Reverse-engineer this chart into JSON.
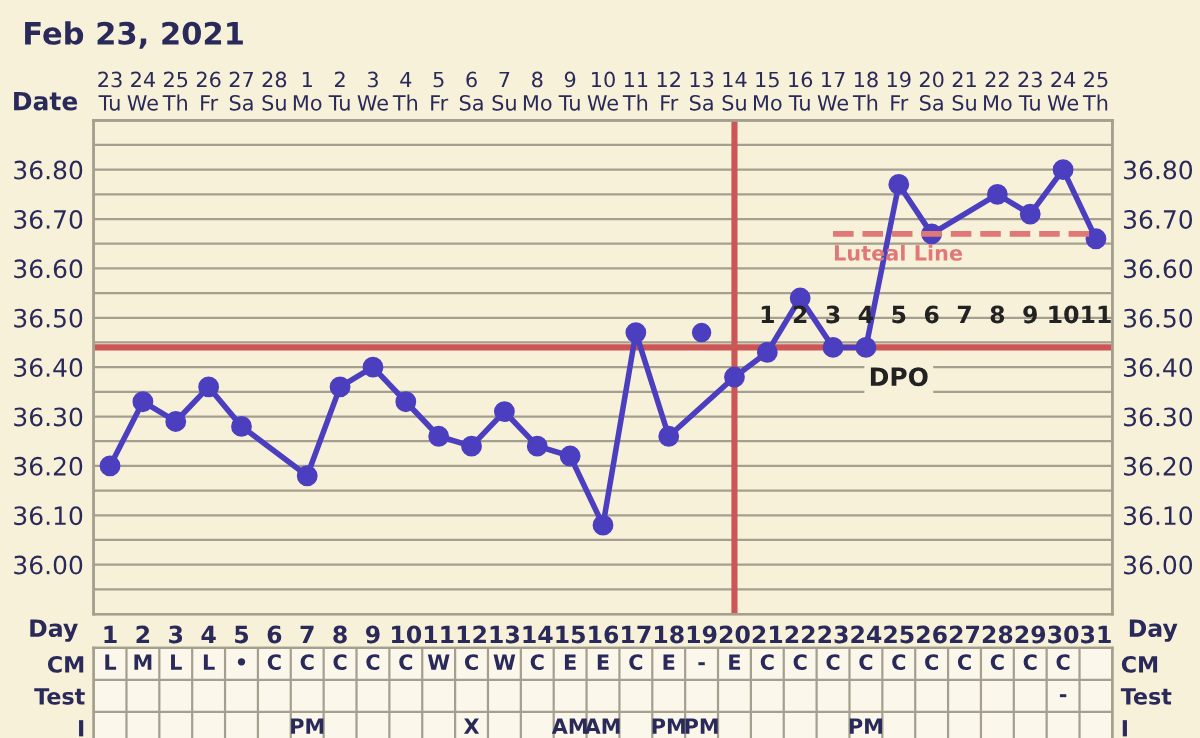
{
  "chart_data": [
    {
      "type": "line",
      "title": "Feb 23, 2021",
      "xlabel": "Day",
      "x2label": "Date",
      "x": [
        1,
        2,
        3,
        4,
        5,
        6,
        7,
        8,
        9,
        10,
        11,
        12,
        13,
        14,
        15,
        16,
        17,
        18,
        19,
        20,
        21,
        22,
        23,
        24,
        25,
        26,
        27,
        28,
        29,
        30,
        31
      ],
      "series": [
        {
          "color": "#4b3fc0",
          "values": [
            36.2,
            36.33,
            36.29,
            36.36,
            36.28,
            null,
            36.18,
            36.36,
            36.4,
            36.33,
            36.26,
            36.24,
            36.31,
            36.24,
            36.22,
            36.08,
            36.47,
            36.26,
            null,
            36.38,
            36.43,
            36.54,
            36.44,
            36.44,
            36.77,
            36.67,
            null,
            36.75,
            36.71,
            36.8,
            36.66
          ]
        },
        {
          "type": "scatter",
          "x": [
            19
          ],
          "values": [
            36.47
          ],
          "color": "#4b3fc0"
        },
        {
          "name": "Luteal Line",
          "type": "line",
          "x": [
            23,
            31
          ],
          "values": [
            36.67,
            36.67
          ],
          "color": "#e07878",
          "line_style": "dashed",
          "marker": "none"
        }
      ],
      "marker": "circle",
      "line_style": "solid",
      "grid": true,
      "xlim": [
        0.5,
        31.5
      ],
      "xticks": [
        1,
        2,
        3,
        4,
        5,
        6,
        7,
        8,
        9,
        10,
        11,
        12,
        13,
        14,
        15,
        16,
        17,
        18,
        19,
        20,
        21,
        22,
        23,
        24,
        25,
        26,
        27,
        28,
        29,
        30,
        31
      ],
      "x2lim": [
        "2021-02-22T12:00",
        "2021-03-25T12:00"
      ],
      "x2ticks": [
        {
          "value": "2021-02-23",
          "label": "23\nTu"
        },
        {
          "value": "2021-02-24",
          "label": "24\nWe"
        },
        {
          "value": "2021-02-25",
          "label": "25\nTh"
        },
        {
          "value": "2021-02-26",
          "label": "26\nFr"
        },
        {
          "value": "2021-02-27",
          "label": "27\nSa"
        },
        {
          "value": "2021-02-28",
          "label": "28\nSu"
        },
        {
          "value": "2021-03-01",
          "label": "1\nMo"
        },
        {
          "value": "2021-03-02",
          "label": "2\nTu"
        },
        {
          "value": "2021-03-03",
          "label": "3\nWe"
        },
        {
          "value": "2021-03-04",
          "label": "4\nTh"
        },
        {
          "value": "2021-03-05",
          "label": "5\nFr"
        },
        {
          "value": "2021-03-06",
          "label": "6\nSa"
        },
        {
          "value": "2021-03-07",
          "label": "7\nSu"
        },
        {
          "value": "2021-03-08",
          "label": "8\nMo"
        },
        {
          "value": "2021-03-09",
          "label": "9\nTu"
        },
        {
          "value": "2021-03-10",
          "label": "10\nWe"
        },
        {
          "value": "2021-03-11",
          "label": "11\nTh"
        },
        {
          "value": "2021-03-12",
          "label": "12\nFr"
        },
        {
          "value": "2021-03-13",
          "label": "13\nSa"
        },
        {
          "value": "2021-03-14",
          "label": "14\nSu"
        },
        {
          "value": "2021-03-15",
          "label": "15\nMo"
        },
        {
          "value": "2021-03-16",
          "label": "16\nTu"
        },
        {
          "value": "2021-03-17",
          "label": "17\nWe"
        },
        {
          "value": "2021-03-18",
          "label": "18\nTh"
        },
        {
          "value": "2021-03-19",
          "label": "19\nFr"
        },
        {
          "value": "2021-03-20",
          "label": "20\nSa"
        },
        {
          "value": "2021-03-21",
          "label": "21\nSu"
        },
        {
          "value": "2021-03-22",
          "label": "22\nMo"
        },
        {
          "value": "2021-03-23",
          "label": "23\nTu"
        },
        {
          "value": "2021-03-24",
          "label": "24\nWe"
        },
        {
          "value": "2021-03-25",
          "label": "25\nTh"
        }
      ],
      "ylim": [
        35.9,
        36.9
      ],
      "yticks": [
        {
          "value": 35.9,
          "label": null
        },
        {
          "value": 35.95,
          "label": null
        },
        {
          "value": 36.0,
          "label": "36.00"
        },
        {
          "value": 36.05,
          "label": null
        },
        {
          "value": 36.1,
          "label": "36.10"
        },
        {
          "value": 36.15,
          "label": null
        },
        {
          "value": 36.2,
          "label": "36.20"
        },
        {
          "value": 36.25,
          "label": null
        },
        {
          "value": 36.3,
          "label": "36.30"
        },
        {
          "value": 36.35,
          "label": null
        },
        {
          "value": 36.4,
          "label": "36.40"
        },
        {
          "value": 36.45,
          "label": null
        },
        {
          "value": 36.5,
          "label": "36.50"
        },
        {
          "value": 36.55,
          "label": null
        },
        {
          "value": 36.6,
          "label": "36.60"
        },
        {
          "value": 36.65,
          "label": null
        },
        {
          "value": 36.7,
          "label": "36.70"
        },
        {
          "value": 36.75,
          "label": null
        },
        {
          "value": 36.8,
          "label": "36.80"
        },
        {
          "value": 36.85,
          "label": null
        },
        {
          "value": 36.9,
          "label": null
        }
      ],
      "y2lim": [
        35.9,
        36.9
      ],
      "y2ticks": [
        {
          "value": 35.9,
          "label": null
        },
        {
          "value": 35.95,
          "label": null
        },
        {
          "value": 36.0,
          "label": "36.00"
        },
        {
          "value": 36.05,
          "label": null
        },
        {
          "value": 36.1,
          "label": "36.10"
        },
        {
          "value": 36.15,
          "label": null
        },
        {
          "value": 36.2,
          "label": "36.20"
        },
        {
          "value": 36.25,
          "label": null
        },
        {
          "value": 36.3,
          "label": "36.30"
        },
        {
          "value": 36.35,
          "label": null
        },
        {
          "value": 36.4,
          "label": "36.40"
        },
        {
          "value": 36.45,
          "label": null
        },
        {
          "value": 36.5,
          "label": "36.50"
        },
        {
          "value": 36.55,
          "label": null
        },
        {
          "value": 36.6,
          "label": "36.60"
        },
        {
          "value": 36.65,
          "label": null
        },
        {
          "value": 36.7,
          "label": "36.70"
        },
        {
          "value": 36.75,
          "label": null
        },
        {
          "value": 36.8,
          "label": "36.80"
        },
        {
          "value": 36.85,
          "label": null
        },
        {
          "value": 36.9,
          "label": null
        }
      ],
      "ref_lines": [
        {
          "axis": "y",
          "value": 36.44,
          "color": "#cc5555"
        },
        {
          "axis": "x",
          "value": 20,
          "color": "#cc5555"
        }
      ],
      "annotations": [
        {
          "text": "1",
          "x": 21,
          "y": 36.44
        },
        {
          "text": "2",
          "x": 22,
          "y": 36.44
        },
        {
          "text": "3",
          "x": 23,
          "y": 36.44
        },
        {
          "text": "4",
          "x": 24,
          "y": 36.44
        },
        {
          "text": "5",
          "x": 25,
          "y": 36.44
        },
        {
          "text": "6",
          "x": 26,
          "y": 36.44
        },
        {
          "text": "7",
          "x": 27,
          "y": 36.44
        },
        {
          "text": "8",
          "x": 28,
          "y": 36.44
        },
        {
          "text": "9",
          "x": 29,
          "y": 36.44
        },
        {
          "text": "10",
          "x": 30,
          "y": 36.44
        },
        {
          "text": "11",
          "x": 31,
          "y": 36.44
        },
        {
          "text": "DPO",
          "x": 25,
          "y": 36.44
        }
      ]
    },
    {
      "type": "heatmap",
      "categories": [
        null,
        null,
        null,
        null,
        null,
        null,
        null,
        null,
        null,
        null,
        null,
        null,
        null,
        null,
        null,
        null,
        null,
        null,
        null,
        null,
        null,
        null,
        null,
        null,
        null,
        null,
        null,
        null,
        null,
        null,
        null
      ],
      "y_categories": [
        "CM",
        "Test",
        "I"
      ],
      "y2_categories": [
        "CM",
        "Test",
        "I"
      ],
      "cells": [
        [
          null,
          null,
          null,
          null,
          null,
          null,
          null,
          null,
          null,
          null,
          null,
          null,
          null,
          null,
          null,
          null,
          null,
          null,
          null,
          null,
          null,
          null,
          null,
          null,
          null,
          null,
          null,
          null,
          null,
          null,
          null
        ],
        [
          null,
          null,
          null,
          null,
          null,
          null,
          null,
          null,
          null,
          null,
          null,
          null,
          null,
          null,
          null,
          null,
          null,
          null,
          null,
          null,
          null,
          null,
          null,
          null,
          null,
          null,
          null,
          null,
          null,
          null,
          null
        ],
        [
          null,
          null,
          null,
          null,
          null,
          null,
          null,
          null,
          null,
          null,
          null,
          null,
          null,
          null,
          null,
          null,
          null,
          null,
          null,
          null,
          null,
          null,
          null,
          null,
          null,
          null,
          null,
          null,
          null,
          null,
          null
        ]
      ],
      "cell_labels": [
        [
          "L",
          "M",
          "L",
          "L",
          "•",
          "C",
          "C",
          "C",
          "C",
          "C",
          "W",
          "C",
          "W",
          "C",
          "E",
          "E",
          "C",
          "E",
          "-",
          "E",
          "C",
          "C",
          "C",
          "C",
          "C",
          "C",
          "C",
          "C",
          "C",
          "C",
          null
        ],
        [
          null,
          null,
          null,
          null,
          null,
          null,
          null,
          null,
          null,
          null,
          null,
          null,
          null,
          null,
          null,
          null,
          null,
          null,
          null,
          null,
          null,
          null,
          null,
          null,
          null,
          null,
          null,
          null,
          null,
          "-",
          null
        ],
        [
          null,
          null,
          null,
          null,
          null,
          null,
          "PM",
          null,
          null,
          null,
          null,
          "X",
          null,
          null,
          "AM",
          "AM",
          null,
          "PM",
          "PM",
          null,
          null,
          null,
          null,
          "PM",
          null,
          null,
          null,
          null,
          null,
          null,
          null
        ]
      ]
    }
  ]
}
